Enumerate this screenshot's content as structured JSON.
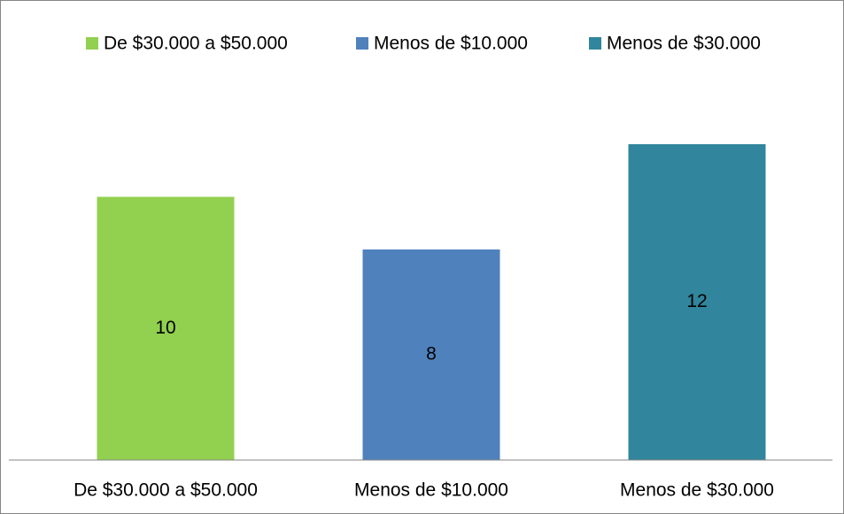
{
  "chart_data": {
    "type": "bar",
    "categories": [
      "De $30.000 a $50.000",
      "Menos de $10.000",
      "Menos de $30.000"
    ],
    "values": [
      10,
      8,
      12
    ],
    "colors": [
      "#92d050",
      "#4f81bd",
      "#31859c"
    ],
    "legend": "top"
  }
}
